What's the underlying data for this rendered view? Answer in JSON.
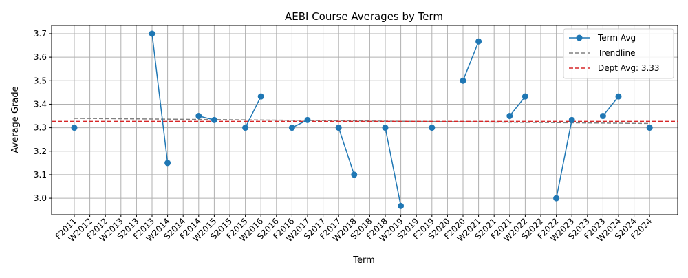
{
  "chart_data": {
    "type": "line",
    "title": "AEBI Course Averages by Term",
    "xlabel": "Term",
    "ylabel": "Average Grade",
    "ylim": [
      2.93,
      3.735
    ],
    "yticks": [
      3.0,
      3.1,
      3.2,
      3.3,
      3.4,
      3.5,
      3.6,
      3.7
    ],
    "grid": true,
    "legend_position": "top-right",
    "categories": [
      "F2011",
      "W2012",
      "F2012",
      "W2013",
      "S2013",
      "F2013",
      "W2014",
      "S2014",
      "F2014",
      "W2015",
      "S2015",
      "F2015",
      "W2016",
      "S2016",
      "F2016",
      "W2017",
      "S2017",
      "F2017",
      "W2018",
      "S2018",
      "F2018",
      "W2019",
      "S2019",
      "F2019",
      "S2020",
      "F2020",
      "W2021",
      "S2021",
      "F2021",
      "W2022",
      "S2022",
      "F2022",
      "W2023",
      "S2023",
      "F2023",
      "W2024",
      "S2024",
      "F2024"
    ],
    "series": [
      {
        "name": "Term Avg",
        "color": "#1f77b4",
        "values": [
          3.3,
          null,
          null,
          null,
          null,
          3.7,
          3.15,
          null,
          3.35,
          3.333,
          null,
          3.3,
          3.433,
          null,
          3.3,
          3.333,
          null,
          3.3,
          3.1,
          null,
          3.3,
          2.967,
          null,
          3.3,
          null,
          3.5,
          3.667,
          null,
          3.35,
          3.433,
          null,
          3.0,
          3.333,
          null,
          3.35,
          3.433,
          null,
          3.3
        ]
      },
      {
        "name": "Trendline",
        "color": "#808080",
        "start": 3.34,
        "end": 3.318
      },
      {
        "name": "Dept Avg: 3.33",
        "color": "#d62728",
        "value": 3.327
      }
    ]
  }
}
